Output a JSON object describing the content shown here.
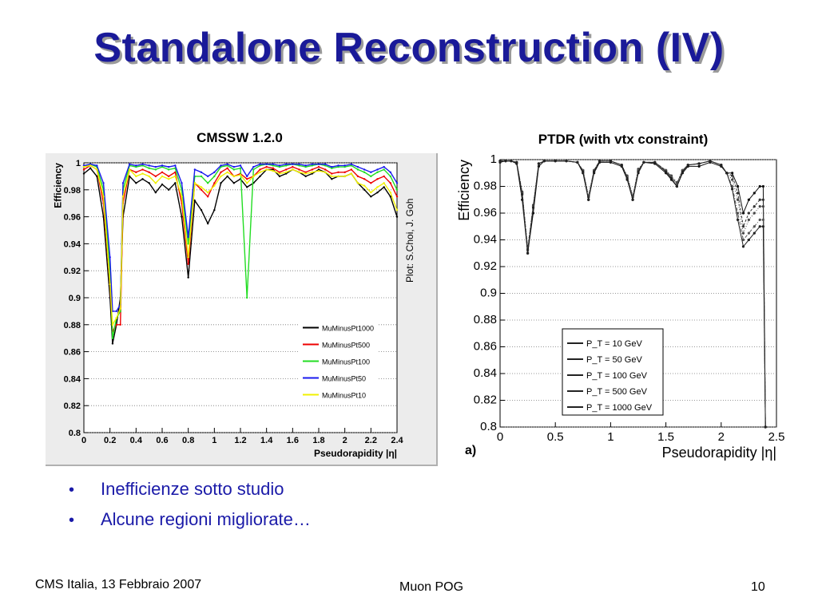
{
  "slide": {
    "title": "Standalone Reconstruction (IV)",
    "left_caption": "CMSSW 1.2.0",
    "right_caption": "PTDR (with vtx constraint)",
    "credit": "Plot: S.Choi, J. Goh",
    "bullets": [
      "Inefficienze sotto studio",
      "Alcune regioni migliorate…"
    ],
    "footer_left": "CMS Italia, 13 Febbraio 2007",
    "footer_center": "Muon POG",
    "footer_right": "10",
    "title_color": "#1a1a99",
    "bullet_color": "#1a1aa8"
  },
  "chart_data": [
    {
      "type": "line",
      "xlabel": "Pseudorapidity |η|",
      "ylabel": "Efficiency",
      "xlim": [
        0,
        2.4
      ],
      "ylim": [
        0.8,
        1.0
      ],
      "xticks": [
        "0",
        "0.2",
        "0.4",
        "0.6",
        "0.8",
        "1",
        "1.2",
        "1.4",
        "1.6",
        "1.8",
        "2",
        "2.2",
        "2.4"
      ],
      "yticks": [
        "0.8",
        "0.82",
        "0.84",
        "0.86",
        "0.88",
        "0.9",
        "0.92",
        "0.94",
        "0.96",
        "0.98",
        "1"
      ],
      "grid": true,
      "legend_position": "bottom-right",
      "x": [
        0.0,
        0.05,
        0.1,
        0.15,
        0.2,
        0.22,
        0.25,
        0.28,
        0.3,
        0.35,
        0.4,
        0.45,
        0.5,
        0.55,
        0.6,
        0.65,
        0.7,
        0.75,
        0.8,
        0.85,
        0.9,
        0.95,
        1.0,
        1.05,
        1.1,
        1.15,
        1.2,
        1.25,
        1.3,
        1.35,
        1.4,
        1.45,
        1.5,
        1.55,
        1.6,
        1.65,
        1.7,
        1.75,
        1.8,
        1.85,
        1.9,
        1.95,
        2.0,
        2.05,
        2.1,
        2.15,
        2.2,
        2.25,
        2.3,
        2.35,
        2.4
      ],
      "series": [
        {
          "name": "MuMinusPt1000",
          "color": "#000000",
          "values": [
            0.992,
            0.996,
            0.99,
            0.96,
            0.9,
            0.866,
            0.88,
            0.9,
            0.96,
            0.99,
            0.985,
            0.988,
            0.985,
            0.978,
            0.984,
            0.98,
            0.985,
            0.96,
            0.915,
            0.972,
            0.965,
            0.955,
            0.965,
            0.985,
            0.99,
            0.985,
            0.988,
            0.982,
            0.985,
            0.99,
            0.995,
            0.995,
            0.99,
            0.992,
            0.995,
            0.993,
            0.99,
            0.992,
            0.995,
            0.993,
            0.988,
            0.99,
            0.99,
            0.992,
            0.985,
            0.98,
            0.975,
            0.978,
            0.982,
            0.975,
            0.96
          ]
        },
        {
          "name": "MuMinusPt500",
          "color": "#ee0000",
          "values": [
            0.995,
            0.998,
            0.995,
            0.97,
            0.91,
            0.875,
            0.88,
            0.88,
            0.97,
            0.995,
            0.993,
            0.995,
            0.993,
            0.99,
            0.993,
            0.99,
            0.993,
            0.97,
            0.925,
            0.985,
            0.98,
            0.975,
            0.985,
            0.993,
            0.996,
            0.99,
            0.992,
            0.988,
            0.99,
            0.995,
            0.997,
            0.996,
            0.993,
            0.995,
            0.997,
            0.995,
            0.993,
            0.995,
            0.997,
            0.995,
            0.992,
            0.993,
            0.993,
            0.995,
            0.99,
            0.988,
            0.985,
            0.988,
            0.99,
            0.985,
            0.975
          ]
        },
        {
          "name": "MuMinusPt100",
          "color": "#22dd22",
          "values": [
            0.997,
            0.999,
            0.997,
            0.98,
            0.92,
            0.87,
            0.885,
            0.89,
            0.98,
            0.998,
            0.997,
            0.998,
            0.996,
            0.995,
            0.997,
            0.995,
            0.996,
            0.98,
            0.94,
            0.99,
            0.99,
            0.985,
            0.99,
            0.997,
            0.998,
            0.995,
            0.996,
            0.9,
            0.995,
            0.998,
            0.999,
            0.998,
            0.997,
            0.998,
            0.999,
            0.998,
            0.997,
            0.998,
            0.999,
            0.998,
            0.996,
            0.997,
            0.997,
            0.998,
            0.995,
            0.993,
            0.99,
            0.993,
            0.995,
            0.99,
            0.98
          ]
        },
        {
          "name": "MuMinusPt50",
          "color": "#1a1aee",
          "values": [
            0.998,
            0.999,
            0.998,
            0.985,
            0.93,
            0.89,
            0.89,
            0.895,
            0.985,
            0.999,
            0.998,
            0.999,
            0.998,
            0.997,
            0.998,
            0.997,
            0.998,
            0.985,
            0.945,
            0.995,
            0.993,
            0.99,
            0.993,
            0.998,
            0.999,
            0.997,
            0.998,
            0.99,
            0.997,
            0.999,
            0.999,
            0.999,
            0.998,
            0.999,
            0.999,
            0.999,
            0.998,
            0.999,
            0.999,
            0.999,
            0.997,
            0.998,
            0.998,
            0.999,
            0.997,
            0.995,
            0.993,
            0.995,
            0.997,
            0.993,
            0.985
          ]
        },
        {
          "name": "MuMinusPt10",
          "color": "#f0f000",
          "values": [
            0.997,
            0.998,
            0.995,
            0.975,
            0.91,
            0.88,
            0.885,
            0.892,
            0.975,
            0.995,
            0.99,
            0.992,
            0.99,
            0.985,
            0.99,
            0.988,
            0.99,
            0.975,
            0.93,
            0.985,
            0.982,
            0.978,
            0.983,
            0.99,
            0.993,
            0.99,
            0.991,
            0.985,
            0.99,
            0.993,
            0.995,
            0.994,
            0.992,
            0.993,
            0.995,
            0.993,
            0.992,
            0.993,
            0.994,
            0.993,
            0.99,
            0.99,
            0.99,
            0.992,
            0.985,
            0.983,
            0.978,
            0.982,
            0.985,
            0.978,
            0.965
          ]
        }
      ]
    },
    {
      "type": "line",
      "panel_label": "a)",
      "xlabel": "Pseudorapidity |η|",
      "ylabel": "Efficiency",
      "xlim": [
        0,
        2.5
      ],
      "ylim": [
        0.8,
        1.0
      ],
      "xticks": [
        "0",
        "0.5",
        "1",
        "1.5",
        "2",
        "2.5"
      ],
      "yticks": [
        "0.8",
        "0.82",
        "0.84",
        "0.86",
        "0.88",
        "0.9",
        "0.92",
        "0.94",
        "0.96",
        "0.98",
        "1"
      ],
      "grid": true,
      "legend_position": "bottom-center",
      "x": [
        0.0,
        0.05,
        0.1,
        0.15,
        0.2,
        0.25,
        0.3,
        0.35,
        0.4,
        0.5,
        0.6,
        0.7,
        0.75,
        0.8,
        0.85,
        0.9,
        1.0,
        1.1,
        1.15,
        1.2,
        1.25,
        1.3,
        1.4,
        1.5,
        1.55,
        1.6,
        1.65,
        1.7,
        1.8,
        1.9,
        2.0,
        2.05,
        2.1,
        2.15,
        2.2,
        2.25,
        2.3,
        2.35,
        2.38,
        2.4
      ],
      "series": [
        {
          "name": "P_T = 10 GeV",
          "values": [
            0.998,
            0.999,
            0.999,
            0.997,
            0.97,
            0.93,
            0.96,
            0.995,
            0.999,
            0.999,
            0.999,
            0.998,
            0.99,
            0.97,
            0.99,
            0.998,
            0.998,
            0.995,
            0.985,
            0.97,
            0.99,
            0.998,
            0.997,
            0.99,
            0.985,
            0.98,
            0.99,
            0.995,
            0.995,
            0.998,
            0.995,
            0.99,
            0.99,
            0.98,
            0.96,
            0.97,
            0.975,
            0.98,
            0.98,
            0.8
          ]
        },
        {
          "name": "P_T = 50 GeV",
          "values": [
            0.999,
            0.999,
            0.999,
            0.998,
            0.975,
            0.933,
            0.965,
            0.997,
            0.999,
            0.999,
            0.999,
            0.998,
            0.992,
            0.972,
            0.992,
            0.999,
            0.999,
            0.996,
            0.987,
            0.972,
            0.992,
            0.998,
            0.998,
            0.992,
            0.987,
            0.982,
            0.992,
            0.996,
            0.997,
            0.999,
            0.996,
            0.99,
            0.988,
            0.975,
            0.95,
            0.96,
            0.965,
            0.97,
            0.97,
            0.8
          ]
        },
        {
          "name": "P_T = 100 GeV",
          "values": [
            0.999,
            0.999,
            0.999,
            0.998,
            0.976,
            0.935,
            0.966,
            0.997,
            0.999,
            0.999,
            0.999,
            0.998,
            0.992,
            0.973,
            0.992,
            0.999,
            0.999,
            0.996,
            0.988,
            0.973,
            0.993,
            0.998,
            0.998,
            0.992,
            0.988,
            0.983,
            0.992,
            0.996,
            0.997,
            0.999,
            0.996,
            0.99,
            0.985,
            0.97,
            0.945,
            0.955,
            0.96,
            0.965,
            0.965,
            0.8
          ]
        },
        {
          "name": "P_T = 500 GeV",
          "values": [
            0.999,
            0.999,
            0.999,
            0.998,
            0.975,
            0.932,
            0.965,
            0.997,
            0.999,
            0.999,
            0.999,
            0.998,
            0.992,
            0.972,
            0.992,
            0.999,
            0.999,
            0.996,
            0.987,
            0.972,
            0.992,
            0.998,
            0.998,
            0.992,
            0.987,
            0.982,
            0.992,
            0.996,
            0.997,
            0.999,
            0.996,
            0.99,
            0.98,
            0.96,
            0.94,
            0.945,
            0.95,
            0.955,
            0.955,
            0.8
          ]
        },
        {
          "name": "P_T = 1000 GeV",
          "values": [
            0.999,
            0.999,
            0.999,
            0.998,
            0.974,
            0.93,
            0.964,
            0.997,
            0.999,
            0.999,
            0.999,
            0.998,
            0.991,
            0.97,
            0.991,
            0.999,
            0.999,
            0.996,
            0.986,
            0.97,
            0.991,
            0.998,
            0.998,
            0.991,
            0.986,
            0.98,
            0.991,
            0.996,
            0.997,
            0.999,
            0.996,
            0.99,
            0.978,
            0.955,
            0.935,
            0.94,
            0.945,
            0.95,
            0.95,
            0.8
          ]
        }
      ]
    }
  ]
}
